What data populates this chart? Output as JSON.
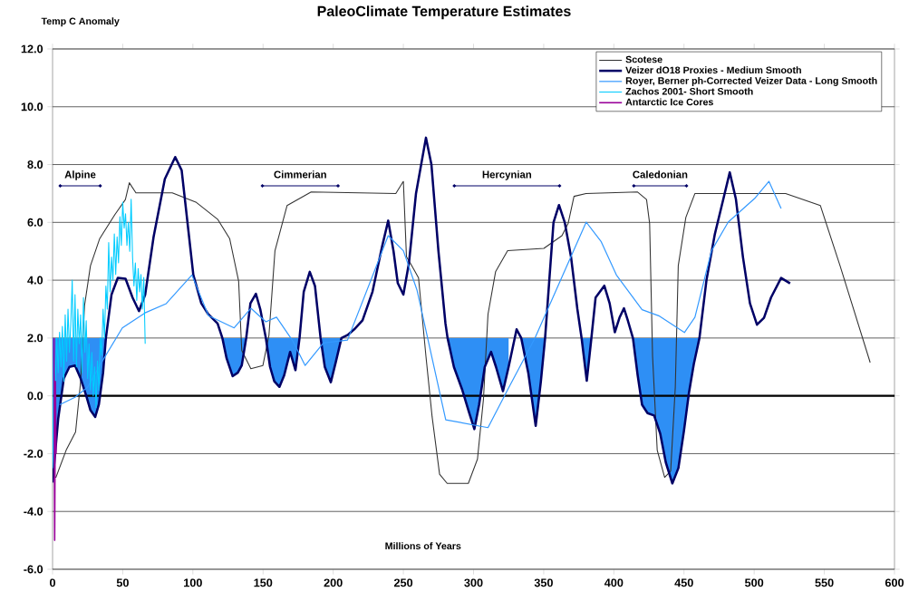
{
  "chart_data": {
    "type": "line",
    "title": "PaleoClimate Temperature Estimates",
    "xlabel": "Millions of Years",
    "ylabel": "Temp C Anomaly",
    "xlim": [
      0,
      600
    ],
    "xticks": [
      0,
      50,
      100,
      150,
      200,
      250,
      300,
      350,
      400,
      450,
      500,
      550,
      600
    ],
    "ylim": [
      -6,
      12
    ],
    "yticks": [
      {
        "value": -6,
        "label": "-6.0"
      },
      {
        "value": -4,
        "label": "-4.0"
      },
      {
        "value": -2,
        "label": "-2.0"
      },
      {
        "value": 0,
        "label": "0.0"
      },
      {
        "value": 2,
        "label": "2.0"
      },
      {
        "value": 4,
        "label": "4.0"
      },
      {
        "value": 6,
        "label": "6.0"
      },
      {
        "value": 8,
        "label": "8.0"
      },
      {
        "value": 10,
        "label": "10.0"
      },
      {
        "value": 12,
        "label": "12.0"
      }
    ],
    "grid": "y",
    "legend": "top right",
    "ref_lines": [
      {
        "axis": "y",
        "value": 0,
        "color": "#000000"
      }
    ],
    "annotations": [
      "Alpine",
      "Cimmerian",
      "Hercynian",
      "Caledonian"
    ],
    "series": [
      {
        "name": "Scotese",
        "color": "#333333",
        "x": [
          0,
          2.4,
          9.7,
          16.4,
          20,
          22.8,
          27,
          33.6,
          44.4,
          51.9,
          54.7,
          59.4,
          85.3,
          102.5,
          117.6,
          126.2,
          132.6,
          134.8,
          141.3,
          149.9,
          154.2,
          158.5,
          167.1,
          184.3,
          244.6,
          250,
          252.2,
          255.4,
          260.8,
          266.1,
          270.5,
          275.8,
          281.2,
          296.3,
          302.8,
          307.1,
          310.3,
          315.7,
          324.3,
          350.1,
          363,
          367.4,
          371.6,
          380.2,
          416.9,
          423.3,
          425.5,
          427.6,
          430.9,
          436.2,
          440.5,
          443.8,
          445.9,
          451.3,
          457.8,
          522.4,
          547.2,
          561.2,
          582.7
        ],
        "values": [
          -2.8,
          -2.82,
          -1.88,
          -1.25,
          0.5,
          3.13,
          4.5,
          5.44,
          6.27,
          6.79,
          7.37,
          7.02,
          7.02,
          6.69,
          6.11,
          5.44,
          3.97,
          1.57,
          0.94,
          1.05,
          2.09,
          5.02,
          6.58,
          7.05,
          7.0,
          7.42,
          4.81,
          4.55,
          4.08,
          1.36,
          -0.73,
          -2.71,
          -3.03,
          -3.03,
          -2.19,
          -0.1,
          2.82,
          4.29,
          5.02,
          5.1,
          5.54,
          5.96,
          6.9,
          7.0,
          7.05,
          6.79,
          5.96,
          1.36,
          -1.88,
          -2.82,
          -2.6,
          0.31,
          4.5,
          6.17,
          7.0,
          7.0,
          6.58,
          4.5,
          1.15
        ]
      },
      {
        "name": "Veizer dO18 Proxies - Medium Smooth",
        "color": "#000066",
        "x": [
          0,
          4,
          8,
          12,
          16,
          20,
          24,
          27,
          30.4,
          33,
          36,
          38,
          42,
          46.5,
          52,
          57,
          61.6,
          66,
          72,
          80,
          87.4,
          92,
          100.3,
          106,
          111,
          117.6,
          121,
          124,
          128.3,
          132,
          134.8,
          138,
          141,
          144.9,
          148,
          152,
          155,
          158,
          161.7,
          165,
          169.3,
          173.1,
          176,
          179,
          183.3,
          187,
          191,
          194,
          198.3,
          202,
          205.9,
          210.2,
          215,
          220.9,
          228,
          235,
          239.2,
          243,
          246,
          250,
          254,
          259,
          266.1,
          270,
          275,
          280,
          281.5,
          286,
          292,
          297,
          300.6,
          304,
          308,
          312.5,
          316,
          321,
          325,
          330.7,
          334,
          339,
          344.3,
          348,
          351,
          354,
          357,
          360.9,
          365,
          369.5,
          374,
          377,
          380.7,
          384,
          387,
          393.2,
          397,
          400.7,
          404,
          407.2,
          410,
          413.6,
          417,
          420.1,
          424,
          428.7,
          433,
          437,
          441.7,
          446,
          450,
          453.5,
          457,
          461,
          466,
          472,
          478,
          482.6,
          487,
          492,
          497,
          502,
          507,
          512,
          519.2,
          525.6
        ],
        "values": [
          -3.0,
          -0.8,
          0.6,
          1.0,
          1.05,
          0.6,
          0.0,
          -0.5,
          -0.73,
          -0.3,
          0.8,
          2.0,
          3.5,
          4.08,
          4.05,
          3.4,
          2.93,
          3.5,
          5.5,
          7.5,
          8.26,
          7.8,
          4.19,
          3.2,
          2.82,
          2.5,
          2.0,
          1.3,
          0.68,
          0.8,
          1.05,
          2.0,
          3.2,
          3.53,
          3.0,
          2.0,
          1.0,
          0.5,
          0.31,
          0.7,
          1.52,
          0.89,
          2.0,
          3.6,
          4.29,
          3.8,
          2.0,
          1.0,
          0.47,
          1.2,
          2.0,
          2.1,
          2.3,
          2.61,
          3.6,
          5.2,
          6.06,
          5.0,
          3.9,
          3.5,
          4.6,
          7.0,
          8.93,
          8.0,
          5.0,
          2.5,
          2.0,
          1.0,
          0.2,
          -0.6,
          -1.15,
          -0.3,
          1.0,
          1.52,
          1.0,
          0.16,
          1.0,
          2.3,
          2.0,
          0.8,
          -1.04,
          0.5,
          2.0,
          4.0,
          6.0,
          6.6,
          6.0,
          4.8,
          3.0,
          2.0,
          0.52,
          2.0,
          3.4,
          3.81,
          3.2,
          2.2,
          2.7,
          3.03,
          2.6,
          2.0,
          0.7,
          -0.31,
          -0.6,
          -0.68,
          -1.3,
          -2.3,
          -3.03,
          -2.5,
          -1.2,
          0.1,
          1.1,
          2.0,
          4.0,
          5.6,
          6.8,
          7.73,
          6.8,
          4.8,
          3.2,
          2.46,
          2.7,
          3.4,
          4.08,
          3.89
        ],
        "lower": [
          -3.0,
          -0.8,
          0.6,
          1.0,
          1.05,
          0.6,
          0.0,
          -0.5,
          -0.73,
          -0.3,
          0.8,
          2.0,
          null,
          null,
          null,
          null,
          null,
          null,
          null,
          null,
          null,
          null,
          null,
          null,
          null,
          null,
          2.0,
          1.3,
          0.68,
          0.8,
          1.05,
          2.0,
          null,
          null,
          null,
          2.0,
          1.0,
          0.5,
          0.31,
          0.7,
          1.52,
          0.89,
          2.0,
          null,
          null,
          null,
          2.0,
          1.0,
          0.47,
          1.2,
          2.0,
          null,
          null,
          null,
          null,
          null,
          null,
          null,
          null,
          null,
          null,
          null,
          null,
          null,
          null,
          null,
          2.0,
          1.0,
          0.2,
          -0.6,
          -1.15,
          -0.3,
          1.0,
          1.52,
          1.0,
          0.16,
          1.0,
          null,
          2.0,
          0.8,
          -1.04,
          0.5,
          2.0,
          null,
          null,
          null,
          null,
          null,
          null,
          2.0,
          0.52,
          2.0,
          null,
          null,
          null,
          null,
          null,
          null,
          null,
          2.0,
          0.7,
          -0.31,
          -0.6,
          -0.68,
          -1.3,
          -2.3,
          -3.03,
          -2.5,
          -1.2,
          0.1,
          1.1,
          2.0,
          null,
          null,
          null,
          null,
          null,
          null,
          null,
          null,
          null,
          null,
          null,
          null
        ],
        "upper": [
          2,
          2,
          2,
          2,
          2,
          2,
          2,
          2,
          2,
          2,
          2,
          2,
          null,
          null,
          null,
          null,
          null,
          null,
          null,
          null,
          null,
          null,
          null,
          null,
          null,
          null,
          2,
          2,
          2,
          2,
          2,
          2,
          null,
          null,
          null,
          2,
          2,
          2,
          2,
          2,
          2,
          2,
          2,
          null,
          null,
          null,
          2,
          2,
          2,
          2,
          2,
          null,
          null,
          null,
          null,
          null,
          null,
          null,
          null,
          null,
          null,
          null,
          null,
          null,
          null,
          null,
          2,
          2,
          2,
          2,
          2,
          2,
          2,
          2,
          2,
          2,
          2,
          null,
          2,
          2,
          2,
          2,
          2,
          null,
          null,
          null,
          null,
          null,
          null,
          2,
          2,
          2,
          null,
          null,
          null,
          null,
          null,
          null,
          null,
          2,
          2,
          2,
          2,
          2,
          2,
          2,
          2,
          2,
          2,
          2,
          2,
          2,
          null,
          null,
          null,
          null,
          null,
          null,
          null,
          null,
          null,
          null,
          null,
          null
        ]
      },
      {
        "name": "Royer, Berner ph-Corrected Veizer Data - Long Smooth",
        "color": "#3399ff",
        "x": [
          5,
          16,
          25,
          33.6,
          49.7,
          65.9,
          81,
          99.3,
          111.1,
          129.4,
          141.3,
          152,
          159.6,
          171.4,
          180,
          193,
          210.2,
          239.2,
          250,
          259.7,
          280.2,
          310.3,
          324.3,
          343.7,
          380.3,
          391,
          401.8,
          420.1,
          432,
          450.3,
          457.8,
          469.6,
          481.5,
          500.8,
          510.5,
          519.2
        ],
        "values": [
          -0.31,
          -0.05,
          0.3,
          1.05,
          2.35,
          2.87,
          3.19,
          4.18,
          2.77,
          2.35,
          3.03,
          2.56,
          2.72,
          1.88,
          1.05,
          1.83,
          1.93,
          5.54,
          5.02,
          3.66,
          -0.83,
          -1.1,
          0.21,
          1.99,
          6.01,
          5.33,
          4.18,
          2.98,
          2.77,
          2.19,
          2.72,
          5.02,
          6.01,
          6.85,
          7.42,
          6.48
        ]
      },
      {
        "name": "Zachos 2001- Short Smooth",
        "color": "#00ccff",
        "x": [
          0,
          1,
          2,
          3,
          4,
          5,
          6,
          7,
          8,
          9,
          10,
          11,
          12,
          13,
          14,
          15,
          16,
          17,
          18,
          19,
          20,
          21,
          22,
          23,
          24,
          25,
          26,
          27,
          28,
          29,
          30,
          31,
          32,
          33,
          34,
          35,
          36,
          37,
          38,
          39,
          40,
          41,
          42,
          43,
          44,
          45,
          46,
          47,
          48,
          49,
          50,
          51,
          52,
          53,
          54,
          55,
          56,
          57,
          58,
          59,
          60,
          61,
          62,
          63,
          64,
          65,
          66
        ],
        "values": [
          -2.5,
          1.5,
          0.5,
          2.0,
          0.8,
          2.2,
          1.0,
          2.4,
          0.5,
          2.8,
          1.2,
          3.0,
          1.5,
          2.5,
          4.0,
          1.2,
          3.5,
          1.0,
          3.0,
          1.8,
          2.8,
          0.8,
          3.4,
          1.5,
          2.6,
          0.6,
          1.8,
          0.2,
          1.5,
          0.0,
          1.0,
          -0.4,
          1.2,
          0.2,
          2.0,
          1.4,
          3.0,
          2.0,
          3.8,
          3.0,
          5.3,
          3.6,
          4.8,
          4.0,
          5.6,
          4.2,
          5.5,
          4.6,
          6.2,
          5.2,
          6.7,
          5.8,
          6.3,
          5.2,
          6.0,
          5.0,
          6.8,
          4.8,
          3.8,
          4.6,
          3.3,
          4.4,
          3.6,
          4.2,
          3.0,
          4.1,
          1.8
        ]
      },
      {
        "name": "Antarctic Ice Cores",
        "color": "#990099",
        "x": [
          1,
          1.5,
          2,
          2.5
        ],
        "values": [
          2.0,
          -5.0,
          0.5,
          -2.0
        ]
      }
    ]
  }
}
